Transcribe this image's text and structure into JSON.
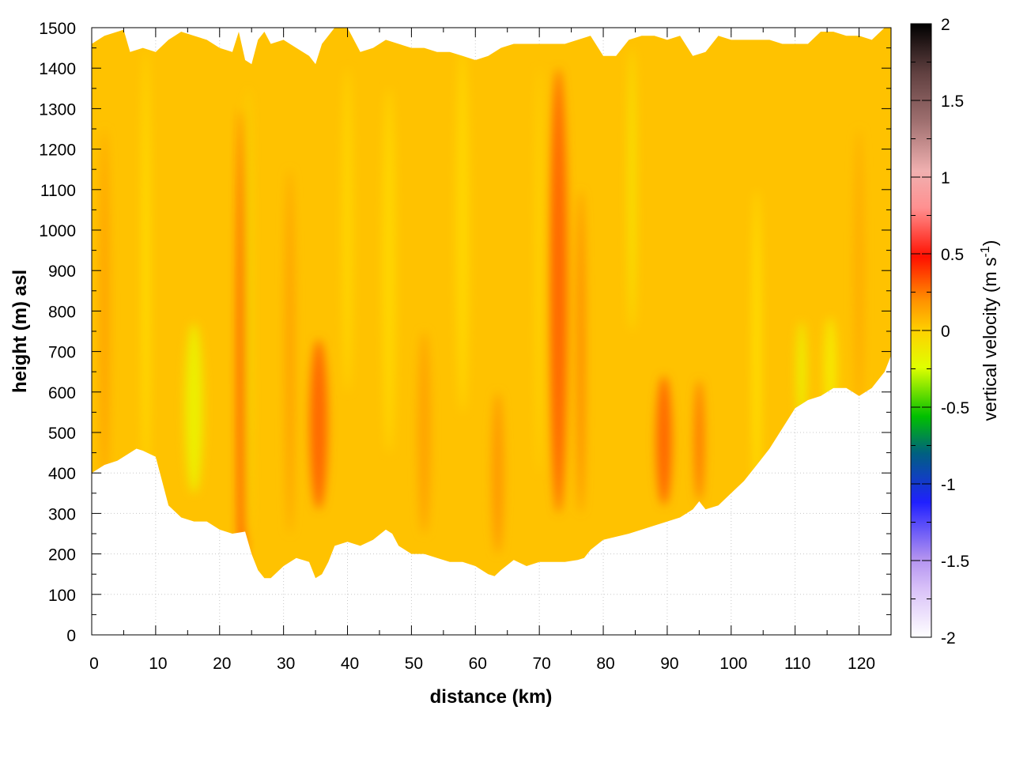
{
  "chart_data": {
    "type": "heatmap",
    "xlabel": "distance (km)",
    "ylabel": "height (m) asl",
    "xlim": [
      0,
      125
    ],
    "ylim": [
      0,
      1500
    ],
    "x_ticks": [
      "0",
      "10",
      "20",
      "30",
      "40",
      "50",
      "60",
      "70",
      "80",
      "90",
      "100",
      "110",
      "120"
    ],
    "y_ticks": [
      "0",
      "100",
      "200",
      "300",
      "400",
      "500",
      "600",
      "700",
      "800",
      "900",
      "1000",
      "1100",
      "1200",
      "1300",
      "1400",
      "1500"
    ],
    "grid": true,
    "colorbar": {
      "label_main": "vertical velocity (m s",
      "label_sup": "-1",
      "label_end": ")",
      "range": [
        -2,
        2
      ],
      "ticks": [
        "-2",
        "-1.5",
        "-1",
        "-0.5",
        "0",
        "0.5",
        "1",
        "1.5",
        "2"
      ]
    },
    "lower_boundary": {
      "distance_km": [
        0,
        2,
        4,
        6,
        7,
        8,
        10,
        11,
        12,
        14,
        16,
        18,
        20,
        22,
        24,
        25,
        26,
        27,
        28,
        30,
        32,
        34,
        35,
        36,
        37,
        38,
        40,
        42,
        44,
        46,
        47,
        48,
        50,
        52,
        54,
        56,
        58,
        60,
        62,
        63,
        64,
        66,
        68,
        70,
        72,
        74,
        76,
        77,
        78,
        80,
        84,
        86,
        88,
        90,
        92,
        94,
        95,
        96,
        98,
        100,
        102,
        104,
        106,
        108,
        110,
        112,
        114,
        116,
        118,
        119,
        120,
        122,
        124,
        125
      ],
      "height_m": [
        400,
        420,
        430,
        450,
        460,
        455,
        440,
        380,
        320,
        290,
        280,
        280,
        260,
        250,
        255,
        200,
        160,
        140,
        140,
        170,
        190,
        180,
        140,
        150,
        180,
        220,
        230,
        220,
        235,
        260,
        250,
        220,
        200,
        200,
        190,
        180,
        180,
        170,
        150,
        145,
        160,
        185,
        170,
        180,
        180,
        180,
        185,
        190,
        210,
        235,
        250,
        260,
        270,
        280,
        290,
        310,
        330,
        310,
        320,
        350,
        380,
        420,
        460,
        510,
        560,
        580,
        590,
        610,
        610,
        600,
        590,
        610,
        650,
        690
      ]
    },
    "upper_boundary": {
      "distance_km": [
        0,
        2,
        4,
        5,
        6,
        8,
        10,
        12,
        14,
        16,
        18,
        20,
        22,
        23,
        24,
        25,
        26,
        27,
        28,
        30,
        32,
        34,
        35,
        36,
        38,
        40,
        42,
        44,
        46,
        48,
        50,
        52,
        54,
        56,
        58,
        60,
        62,
        64,
        66,
        68,
        70,
        72,
        74,
        76,
        78,
        80,
        82,
        84,
        86,
        88,
        90,
        92,
        94,
        96,
        98,
        100,
        102,
        104,
        106,
        108,
        110,
        112,
        114,
        116,
        118,
        120,
        122,
        124,
        125
      ],
      "height_m": [
        1460,
        1480,
        1490,
        1495,
        1440,
        1450,
        1440,
        1470,
        1490,
        1480,
        1470,
        1450,
        1440,
        1490,
        1420,
        1410,
        1470,
        1490,
        1460,
        1470,
        1450,
        1430,
        1410,
        1460,
        1500,
        1500,
        1440,
        1450,
        1470,
        1460,
        1450,
        1450,
        1440,
        1440,
        1430,
        1420,
        1430,
        1450,
        1460,
        1460,
        1460,
        1460,
        1460,
        1470,
        1480,
        1430,
        1430,
        1470,
        1480,
        1480,
        1470,
        1480,
        1430,
        1440,
        1480,
        1470,
        1470,
        1470,
        1470,
        1460,
        1460,
        1460,
        1490,
        1490,
        1480,
        1480,
        1470,
        1500,
        1500
      ]
    },
    "features": [
      {
        "x_km": 23.5,
        "y_m": 650,
        "width_km": 1.2,
        "height_m": 1300,
        "value": 0.45
      },
      {
        "x_km": 24.5,
        "y_m": 800,
        "width_km": 0.6,
        "height_m": 1100,
        "value": -0.25
      },
      {
        "x_km": 35.5,
        "y_m": 520,
        "width_km": 2.8,
        "height_m": 420,
        "value": 0.35
      },
      {
        "x_km": 31.0,
        "y_m": 700,
        "width_km": 1.5,
        "height_m": 900,
        "value": 0.15
      },
      {
        "x_km": 16.0,
        "y_m": 560,
        "width_km": 2.8,
        "height_m": 420,
        "value": -0.25
      },
      {
        "x_km": 8.5,
        "y_m": 900,
        "width_km": 1.0,
        "height_m": 1100,
        "value": -0.15
      },
      {
        "x_km": 2.0,
        "y_m": 800,
        "width_km": 1.5,
        "height_m": 900,
        "value": 0.15
      },
      {
        "x_km": 73.0,
        "y_m": 850,
        "width_km": 2.8,
        "height_m": 1100,
        "value": 0.35
      },
      {
        "x_km": 76.5,
        "y_m": 700,
        "width_km": 1.2,
        "height_m": 800,
        "value": 0.25
      },
      {
        "x_km": 70.0,
        "y_m": 900,
        "width_km": 1.0,
        "height_m": 1000,
        "value": -0.1
      },
      {
        "x_km": 89.5,
        "y_m": 480,
        "width_km": 2.5,
        "height_m": 320,
        "value": 0.35
      },
      {
        "x_km": 95.0,
        "y_m": 480,
        "width_km": 1.5,
        "height_m": 300,
        "value": 0.3
      },
      {
        "x_km": 63.5,
        "y_m": 400,
        "width_km": 1.8,
        "height_m": 400,
        "value": 0.2
      },
      {
        "x_km": 52.0,
        "y_m": 500,
        "width_km": 2.0,
        "height_m": 500,
        "value": 0.15
      },
      {
        "x_km": 46.5,
        "y_m": 900,
        "width_km": 2.0,
        "height_m": 900,
        "value": -0.1
      },
      {
        "x_km": 84.5,
        "y_m": 1100,
        "width_km": 1.0,
        "height_m": 700,
        "value": -0.2
      },
      {
        "x_km": 111.0,
        "y_m": 650,
        "width_km": 1.5,
        "height_m": 250,
        "value": -0.25
      },
      {
        "x_km": 115.5,
        "y_m": 660,
        "width_km": 2.0,
        "height_m": 250,
        "value": -0.2
      },
      {
        "x_km": 104.0,
        "y_m": 700,
        "width_km": 1.2,
        "height_m": 800,
        "value": -0.15
      },
      {
        "x_km": 120.0,
        "y_m": 900,
        "width_km": 1.5,
        "height_m": 700,
        "value": 0.1
      },
      {
        "x_km": 58.0,
        "y_m": 1000,
        "width_km": 2.0,
        "height_m": 900,
        "value": -0.1
      },
      {
        "x_km": 40.0,
        "y_m": 1000,
        "width_km": 1.5,
        "height_m": 800,
        "value": -0.1
      }
    ]
  }
}
